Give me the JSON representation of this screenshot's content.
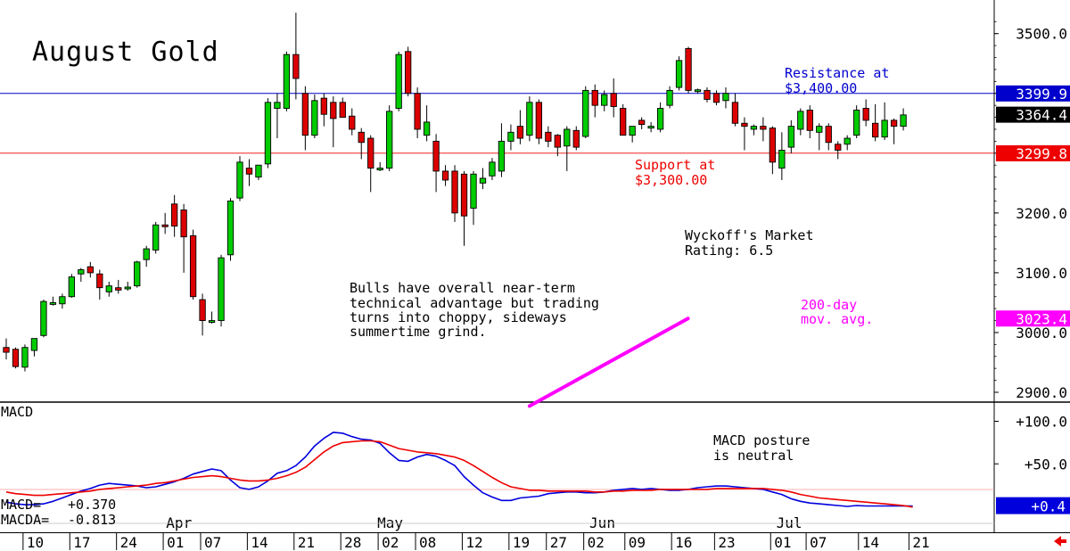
{
  "chart_data": [
    {
      "type": "candlestick",
      "title": "August Gold",
      "ylim": [
        2880,
        3540
      ],
      "y_ticks": [
        {
          "value": 3500,
          "label": "3500.0"
        },
        {
          "value": 3400,
          "label": ""
        },
        {
          "value": 3300,
          "label": ""
        },
        {
          "value": 3200,
          "label": "3200.0"
        },
        {
          "value": 3100,
          "label": "3100.0"
        },
        {
          "value": 3000,
          "label": "3000.0"
        },
        {
          "value": 2900,
          "label": "2900.0"
        }
      ],
      "price_boxes": [
        {
          "value": 3399.9,
          "label": "3399.9",
          "bg": "#0000cc"
        },
        {
          "value": 3364.4,
          "label": "3364.4",
          "bg": "#000000"
        },
        {
          "value": 3299.8,
          "label": "3299.8",
          "bg": "#ee0000"
        },
        {
          "value": 3023.4,
          "label": "3023.4",
          "bg": "#ff00ff"
        }
      ],
      "resistance": {
        "value": 3400,
        "label_line1": "Resistance at",
        "label_line2": "$3,400.00",
        "color": "#0000cc"
      },
      "support": {
        "value": 3300,
        "label_line1": "Support at",
        "label_line2": "$3,300.00",
        "color": "#ee0000"
      },
      "moving_average": {
        "label_line1": "200-day",
        "label_line2": "mov. avg.",
        "color": "#ff00ff",
        "points": [
          [
            56,
            2877
          ],
          [
            72,
            3023.4
          ]
        ]
      },
      "annotations": [
        {
          "lines": [
            "Bulls have overall near-term",
            "technical advantage but trading",
            "turns into choppy, sideways",
            "summertime grind."
          ]
        },
        {
          "lines": [
            "Wyckoff's Market",
            "Rating: 6.5"
          ]
        }
      ],
      "colors": {
        "up": "#00cc00",
        "down": "#dd0000"
      },
      "candles": [
        {
          "o": 2975,
          "h": 2990,
          "l": 2955,
          "c": 2967
        },
        {
          "o": 2972,
          "h": 2975,
          "l": 2940,
          "c": 2943
        },
        {
          "o": 2942,
          "h": 2980,
          "l": 2935,
          "c": 2975
        },
        {
          "o": 2970,
          "h": 2990,
          "l": 2960,
          "c": 2990
        },
        {
          "o": 2995,
          "h": 3055,
          "l": 2992,
          "c": 3052
        },
        {
          "o": 3050,
          "h": 3060,
          "l": 3045,
          "c": 3050
        },
        {
          "o": 3048,
          "h": 3065,
          "l": 3040,
          "c": 3060
        },
        {
          "o": 3060,
          "h": 3098,
          "l": 3058,
          "c": 3093
        },
        {
          "o": 3098,
          "h": 3108,
          "l": 3085,
          "c": 3105
        },
        {
          "o": 3110,
          "h": 3118,
          "l": 3092,
          "c": 3100
        },
        {
          "o": 3098,
          "h": 3105,
          "l": 3055,
          "c": 3075
        },
        {
          "o": 3068,
          "h": 3085,
          "l": 3060,
          "c": 3078
        },
        {
          "o": 3075,
          "h": 3088,
          "l": 3065,
          "c": 3071
        },
        {
          "o": 3075,
          "h": 3085,
          "l": 3070,
          "c": 3076
        },
        {
          "o": 3078,
          "h": 3120,
          "l": 3075,
          "c": 3118
        },
        {
          "o": 3122,
          "h": 3145,
          "l": 3110,
          "c": 3140
        },
        {
          "o": 3138,
          "h": 3185,
          "l": 3132,
          "c": 3180
        },
        {
          "o": 3180,
          "h": 3200,
          "l": 3165,
          "c": 3178
        },
        {
          "o": 3215,
          "h": 3230,
          "l": 3160,
          "c": 3178
        },
        {
          "o": 3205,
          "h": 3215,
          "l": 3100,
          "c": 3160
        },
        {
          "o": 3162,
          "h": 3172,
          "l": 3055,
          "c": 3060
        },
        {
          "o": 3055,
          "h": 3065,
          "l": 2995,
          "c": 3020
        },
        {
          "o": 3020,
          "h": 3035,
          "l": 3015,
          "c": 3020
        },
        {
          "o": 3020,
          "h": 3130,
          "l": 3010,
          "c": 3125
        },
        {
          "o": 3130,
          "h": 3225,
          "l": 3120,
          "c": 3220
        },
        {
          "o": 3225,
          "h": 3295,
          "l": 3220,
          "c": 3285
        },
        {
          "o": 3275,
          "h": 3290,
          "l": 3245,
          "c": 3265
        },
        {
          "o": 3260,
          "h": 3280,
          "l": 3255,
          "c": 3280
        },
        {
          "o": 3282,
          "h": 3392,
          "l": 3275,
          "c": 3385
        },
        {
          "o": 3375,
          "h": 3400,
          "l": 3325,
          "c": 3385
        },
        {
          "o": 3375,
          "h": 3470,
          "l": 3370,
          "c": 3465
        },
        {
          "o": 3465,
          "h": 3535,
          "l": 3390,
          "c": 3425
        },
        {
          "o": 3400,
          "h": 3412,
          "l": 3305,
          "c": 3330
        },
        {
          "o": 3330,
          "h": 3398,
          "l": 3325,
          "c": 3388
        },
        {
          "o": 3392,
          "h": 3400,
          "l": 3345,
          "c": 3365
        },
        {
          "o": 3385,
          "h": 3395,
          "l": 3310,
          "c": 3358
        },
        {
          "o": 3385,
          "h": 3393,
          "l": 3360,
          "c": 3360
        },
        {
          "o": 3362,
          "h": 3375,
          "l": 3330,
          "c": 3340
        },
        {
          "o": 3335,
          "h": 3342,
          "l": 3290,
          "c": 3318
        },
        {
          "o": 3325,
          "h": 3330,
          "l": 3235,
          "c": 3275
        },
        {
          "o": 3275,
          "h": 3285,
          "l": 3270,
          "c": 3275
        },
        {
          "o": 3275,
          "h": 3380,
          "l": 3270,
          "c": 3370
        },
        {
          "o": 3375,
          "h": 3470,
          "l": 3370,
          "c": 3465
        },
        {
          "o": 3470,
          "h": 3478,
          "l": 3395,
          "c": 3400
        },
        {
          "o": 3400,
          "h": 3410,
          "l": 3325,
          "c": 3340
        },
        {
          "o": 3330,
          "h": 3380,
          "l": 3320,
          "c": 3352
        },
        {
          "o": 3320,
          "h": 3332,
          "l": 3235,
          "c": 3270
        },
        {
          "o": 3270,
          "h": 3280,
          "l": 3245,
          "c": 3255
        },
        {
          "o": 3270,
          "h": 3280,
          "l": 3185,
          "c": 3200
        },
        {
          "o": 3265,
          "h": 3270,
          "l": 3145,
          "c": 3195
        },
        {
          "o": 3208,
          "h": 3270,
          "l": 3180,
          "c": 3265
        },
        {
          "o": 3250,
          "h": 3275,
          "l": 3240,
          "c": 3258
        },
        {
          "o": 3262,
          "h": 3292,
          "l": 3255,
          "c": 3285
        },
        {
          "o": 3270,
          "h": 3350,
          "l": 3260,
          "c": 3320
        },
        {
          "o": 3320,
          "h": 3348,
          "l": 3305,
          "c": 3335
        },
        {
          "o": 3345,
          "h": 3372,
          "l": 3315,
          "c": 3325
        },
        {
          "o": 3330,
          "h": 3395,
          "l": 3320,
          "c": 3385
        },
        {
          "o": 3385,
          "h": 3390,
          "l": 3315,
          "c": 3325
        },
        {
          "o": 3335,
          "h": 3345,
          "l": 3310,
          "c": 3320
        },
        {
          "o": 3330,
          "h": 3332,
          "l": 3295,
          "c": 3310
        },
        {
          "o": 3312,
          "h": 3345,
          "l": 3270,
          "c": 3340
        },
        {
          "o": 3338,
          "h": 3345,
          "l": 3305,
          "c": 3310
        },
        {
          "o": 3328,
          "h": 3412,
          "l": 3325,
          "c": 3405
        },
        {
          "o": 3405,
          "h": 3415,
          "l": 3360,
          "c": 3380
        },
        {
          "o": 3380,
          "h": 3405,
          "l": 3370,
          "c": 3398
        },
        {
          "o": 3400,
          "h": 3425,
          "l": 3360,
          "c": 3378
        },
        {
          "o": 3375,
          "h": 3382,
          "l": 3330,
          "c": 3330
        },
        {
          "o": 3330,
          "h": 3342,
          "l": 3318,
          "c": 3345
        },
        {
          "o": 3355,
          "h": 3360,
          "l": 3340,
          "c": 3348
        },
        {
          "o": 3342,
          "h": 3352,
          "l": 3335,
          "c": 3345
        },
        {
          "o": 3340,
          "h": 3385,
          "l": 3335,
          "c": 3375
        },
        {
          "o": 3380,
          "h": 3412,
          "l": 3375,
          "c": 3405
        },
        {
          "o": 3410,
          "h": 3462,
          "l": 3405,
          "c": 3455
        },
        {
          "o": 3475,
          "h": 3478,
          "l": 3400,
          "c": 3405
        },
        {
          "o": 3404,
          "h": 3408,
          "l": 3400,
          "c": 3406
        },
        {
          "o": 3405,
          "h": 3410,
          "l": 3385,
          "c": 3390
        },
        {
          "o": 3400,
          "h": 3405,
          "l": 3380,
          "c": 3385
        },
        {
          "o": 3388,
          "h": 3410,
          "l": 3375,
          "c": 3400
        },
        {
          "o": 3385,
          "h": 3400,
          "l": 3345,
          "c": 3350
        },
        {
          "o": 3350,
          "h": 3360,
          "l": 3305,
          "c": 3345
        },
        {
          "o": 3340,
          "h": 3348,
          "l": 3330,
          "c": 3345
        },
        {
          "o": 3345,
          "h": 3360,
          "l": 3320,
          "c": 3340
        },
        {
          "o": 3342,
          "h": 3345,
          "l": 3265,
          "c": 3285
        },
        {
          "o": 3275,
          "h": 3335,
          "l": 3255,
          "c": 3305
        },
        {
          "o": 3310,
          "h": 3355,
          "l": 3300,
          "c": 3345
        },
        {
          "o": 3340,
          "h": 3375,
          "l": 3330,
          "c": 3370
        },
        {
          "o": 3372,
          "h": 3380,
          "l": 3325,
          "c": 3338
        },
        {
          "o": 3335,
          "h": 3350,
          "l": 3305,
          "c": 3345
        },
        {
          "o": 3345,
          "h": 3350,
          "l": 3305,
          "c": 3318
        },
        {
          "o": 3315,
          "h": 3320,
          "l": 3290,
          "c": 3305
        },
        {
          "o": 3315,
          "h": 3330,
          "l": 3305,
          "c": 3325
        },
        {
          "o": 3330,
          "h": 3380,
          "l": 3325,
          "c": 3372
        },
        {
          "o": 3375,
          "h": 3390,
          "l": 3345,
          "c": 3355
        },
        {
          "o": 3350,
          "h": 3382,
          "l": 3320,
          "c": 3327
        },
        {
          "o": 3327,
          "h": 3385,
          "l": 3322,
          "c": 3355
        },
        {
          "o": 3355,
          "h": 3358,
          "l": 3315,
          "c": 3345
        },
        {
          "o": 3345,
          "h": 3375,
          "l": 3338,
          "c": 3364
        }
      ]
    },
    {
      "type": "line",
      "title": "MACD",
      "ylim": [
        -6,
        125
      ],
      "y_ticks": [
        {
          "value": 100,
          "label": "+100.0"
        },
        {
          "value": 50,
          "label": "+50.0"
        }
      ],
      "value_box": {
        "value": 0.4,
        "label": "+0.4",
        "bg": "#0000dd"
      },
      "readout": [
        {
          "label": "MACD=",
          "value": "+0.370"
        },
        {
          "label": "MACDA=",
          "value": "-0.813"
        }
      ],
      "annotation": {
        "lines": [
          "MACD posture",
          "is neutral"
        ]
      },
      "series": [
        {
          "color": "#0000dd",
          "values": [
            5,
            3,
            2,
            2,
            3,
            6,
            10,
            14,
            18,
            21,
            25,
            27,
            26,
            25,
            24,
            22,
            23,
            26,
            29,
            33,
            38,
            41,
            44,
            42,
            31,
            22,
            20,
            23,
            30,
            39,
            42,
            48,
            58,
            71,
            80,
            87,
            86,
            82,
            79,
            78,
            74,
            63,
            54,
            53,
            58,
            61,
            59,
            54,
            48,
            35,
            25,
            16,
            11,
            7,
            7,
            10,
            11,
            12,
            15,
            16,
            17,
            17,
            16,
            16,
            17,
            19,
            20,
            21,
            20,
            21,
            20,
            19,
            19,
            20,
            22,
            23,
            24,
            24,
            23,
            22,
            21,
            20,
            17,
            14,
            9,
            6,
            4,
            3,
            2,
            1,
            0,
            1,
            0.5,
            0.5,
            0.5,
            0.5,
            0.5,
            0.4
          ]
        },
        {
          "color": "#ee0000",
          "values": [
            17,
            15,
            14,
            13,
            13,
            14,
            15,
            16,
            17,
            18,
            20,
            21,
            22,
            23,
            24,
            25,
            27,
            28,
            30,
            32,
            34,
            35,
            36,
            35,
            33,
            31,
            30,
            30,
            31,
            33,
            36,
            40,
            46,
            55,
            64,
            71,
            75,
            76,
            77,
            77,
            76,
            72,
            68,
            66,
            64,
            63,
            62,
            60,
            58,
            54,
            48,
            41,
            34,
            28,
            23,
            21,
            19,
            19,
            18,
            18,
            18,
            18,
            18,
            17,
            17,
            18,
            18,
            19,
            19,
            19,
            20,
            20,
            20,
            20,
            20,
            20,
            21,
            21,
            21,
            21,
            21,
            21,
            20,
            19,
            17,
            14,
            12,
            10,
            9,
            8,
            7,
            6,
            5,
            4,
            3,
            2,
            1,
            -0.8
          ]
        }
      ],
      "x_ticks": [
        {
          "index": 1.8,
          "label": "10"
        },
        {
          "index": 6.8,
          "label": "17"
        },
        {
          "index": 11.8,
          "label": "24"
        },
        {
          "index": 16.8,
          "label": "01"
        },
        {
          "index": 20.8,
          "label": "07"
        },
        {
          "index": 25.8,
          "label": "14"
        },
        {
          "index": 30.8,
          "label": "21"
        },
        {
          "index": 35.8,
          "label": "28"
        },
        {
          "index": 39.8,
          "label": "02"
        },
        {
          "index": 43.8,
          "label": "08"
        },
        {
          "index": 48.8,
          "label": "12"
        },
        {
          "index": 53.8,
          "label": "19"
        },
        {
          "index": 57.8,
          "label": "27"
        },
        {
          "index": 61.8,
          "label": "02"
        },
        {
          "index": 66.2,
          "label": "09"
        },
        {
          "index": 71.2,
          "label": "16"
        },
        {
          "index": 75.8,
          "label": "23"
        },
        {
          "index": 81.8,
          "label": "01"
        },
        {
          "index": 85.6,
          "label": "07"
        },
        {
          "index": 91.2,
          "label": "14"
        },
        {
          "index": 96.6,
          "label": "21"
        }
      ],
      "month_labels": [
        {
          "index": 17.3,
          "label": "Apr"
        },
        {
          "index": 39.9,
          "label": "May"
        },
        {
          "index": 62.6,
          "label": "Jun"
        },
        {
          "index": 82.6,
          "label": "Jul"
        }
      ]
    }
  ]
}
